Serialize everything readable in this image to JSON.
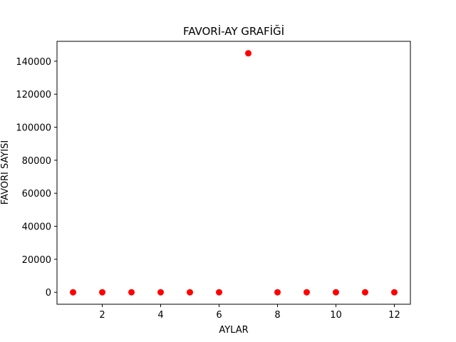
{
  "chart_data": {
    "type": "scatter",
    "title": "FAVORİ-AY GRAFİĞİ",
    "xlabel": "AYLAR",
    "ylabel": "FAVORİ SAYISI",
    "x": [
      1,
      2,
      3,
      4,
      5,
      6,
      7,
      8,
      9,
      10,
      11,
      12
    ],
    "y": [
      0,
      0,
      0,
      0,
      0,
      0,
      144800,
      0,
      0,
      0,
      0,
      0
    ],
    "xlim": [
      0.45,
      12.55
    ],
    "ylim": [
      -7240,
      152040
    ],
    "xticks": [
      2,
      4,
      6,
      8,
      10,
      12
    ],
    "yticks": [
      0,
      20000,
      40000,
      60000,
      80000,
      100000,
      120000,
      140000
    ],
    "marker_color": "#ff0000",
    "grid": false
  }
}
